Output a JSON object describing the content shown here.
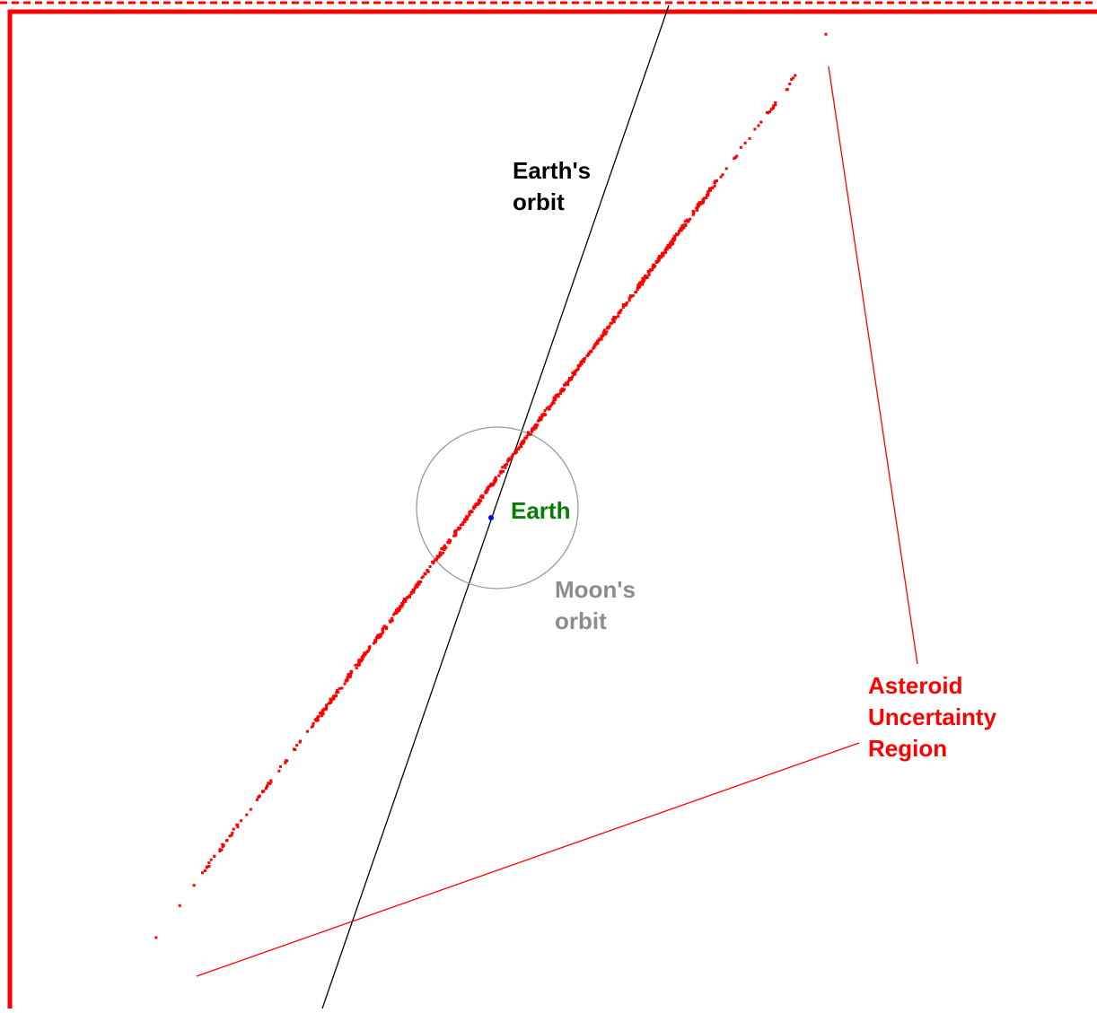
{
  "labels": {
    "earth_orbit": [
      "Earth's",
      "orbit"
    ],
    "earth": "Earth",
    "moon_orbit": [
      "Moon's",
      "orbit"
    ],
    "asteroid_region": [
      "Asteroid",
      "Uncertainty",
      "Region"
    ]
  },
  "colors": {
    "frame": "#ff0000",
    "earth_orbit": "#000000",
    "earth_label": "#007f00",
    "moon_orbit": "#999999",
    "moon_label": "#8c8c8c",
    "asteroid": "#ff0000",
    "earth_dot": "#0000ff"
  }
}
